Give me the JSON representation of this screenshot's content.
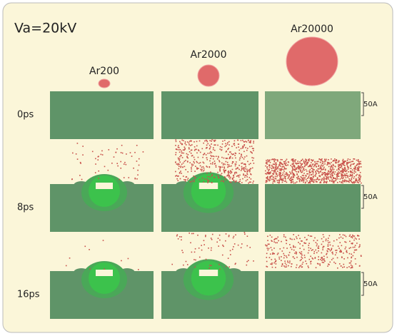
{
  "title": "Va=20kV",
  "columns": [
    "Ar200",
    "Ar2000",
    "Ar20000"
  ],
  "rows": [
    "0ps",
    "8ps",
    "16ps"
  ],
  "scale_labels": [
    "50A",
    "50A",
    "50A"
  ]
}
